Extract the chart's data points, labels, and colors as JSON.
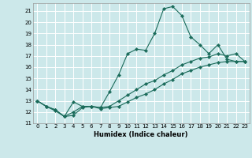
{
  "xlabel": "Humidex (Indice chaleur)",
  "bg_color": "#cce8ea",
  "grid_color": "#ffffff",
  "line_color": "#1a6b5a",
  "xlim": [
    -0.5,
    23.5
  ],
  "ylim": [
    11.0,
    21.7
  ],
  "yticks": [
    11,
    12,
    13,
    14,
    15,
    16,
    17,
    18,
    19,
    20,
    21
  ],
  "xticks": [
    0,
    1,
    2,
    3,
    4,
    5,
    6,
    7,
    8,
    9,
    10,
    11,
    12,
    13,
    14,
    15,
    16,
    17,
    18,
    19,
    20,
    21,
    22,
    23
  ],
  "line1_x": [
    0,
    1,
    2,
    3,
    4,
    5,
    6,
    7,
    8,
    9,
    10,
    11,
    12,
    13,
    14,
    15,
    16,
    17,
    18,
    19,
    20,
    21,
    22,
    23
  ],
  "line1_y": [
    13.0,
    12.5,
    12.1,
    11.6,
    12.9,
    12.5,
    12.5,
    12.4,
    13.8,
    15.3,
    17.2,
    17.6,
    17.5,
    19.0,
    21.2,
    21.4,
    20.6,
    18.7,
    18.0,
    17.2,
    18.0,
    16.7,
    16.5,
    16.5
  ],
  "line2_x": [
    0,
    1,
    2,
    3,
    4,
    5,
    6,
    7,
    8,
    9,
    10,
    11,
    12,
    13,
    14,
    15,
    16,
    17,
    18,
    19,
    20,
    21,
    22,
    23
  ],
  "line2_y": [
    13.0,
    12.5,
    12.2,
    11.6,
    12.0,
    12.5,
    12.5,
    12.4,
    12.5,
    13.0,
    13.5,
    14.0,
    14.5,
    14.8,
    15.3,
    15.7,
    16.2,
    16.5,
    16.8,
    16.9,
    17.2,
    17.0,
    17.2,
    16.5
  ],
  "line3_x": [
    0,
    1,
    2,
    3,
    4,
    5,
    6,
    7,
    8,
    9,
    10,
    11,
    12,
    13,
    14,
    15,
    16,
    17,
    18,
    19,
    20,
    21,
    22,
    23
  ],
  "line3_y": [
    13.0,
    12.5,
    12.2,
    11.6,
    11.7,
    12.4,
    12.5,
    12.3,
    12.4,
    12.5,
    12.9,
    13.3,
    13.6,
    14.0,
    14.5,
    14.9,
    15.4,
    15.7,
    16.0,
    16.2,
    16.4,
    16.5,
    16.5,
    16.5
  ]
}
